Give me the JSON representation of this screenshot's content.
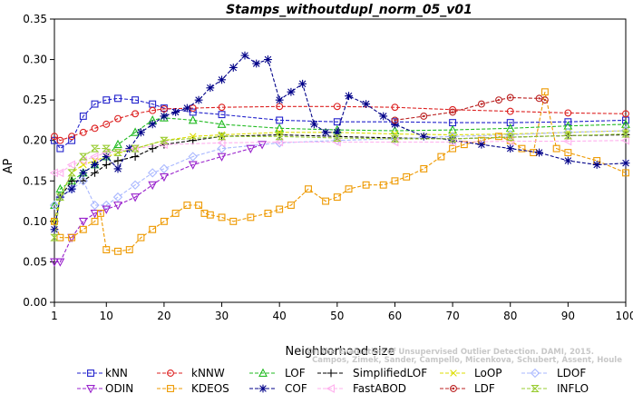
{
  "chart_data": {
    "type": "line",
    "title": "Stamps_withoutdupl_norm_05_v01",
    "xlabel": "Neighborhood size",
    "ylabel": "AP",
    "xlim": [
      1,
      100
    ],
    "ylim": [
      0,
      0.35
    ],
    "x_ticks": [
      1,
      10,
      20,
      30,
      40,
      50,
      60,
      70,
      80,
      90,
      100
    ],
    "y_ticks": [
      "0.00",
      "0.05",
      "0.10",
      "0.15",
      "0.20",
      "0.25",
      "0.30",
      "0.35"
    ],
    "grid": false,
    "legend_position": "bottom",
    "credit_lines": [
      "Campos, Zimek, Sander, Campello, Micenkova, Schubert, Assent, Houle",
      "On the Evaluation of Unsupervised Outlier Detection. DAMI, 2015."
    ],
    "series": [
      {
        "name": "kNN",
        "color": "#2222cc",
        "marker": "square",
        "points": [
          [
            1,
            0.2
          ],
          [
            2,
            0.19
          ],
          [
            4,
            0.2
          ],
          [
            6,
            0.23
          ],
          [
            8,
            0.245
          ],
          [
            10,
            0.25
          ],
          [
            12,
            0.252
          ],
          [
            15,
            0.25
          ],
          [
            18,
            0.245
          ],
          [
            20,
            0.24
          ],
          [
            25,
            0.235
          ],
          [
            30,
            0.232
          ],
          [
            40,
            0.225
          ],
          [
            50,
            0.223
          ],
          [
            60,
            0.223
          ],
          [
            70,
            0.222
          ],
          [
            80,
            0.222
          ],
          [
            90,
            0.223
          ],
          [
            100,
            0.225
          ]
        ]
      },
      {
        "name": "kNNW",
        "color": "#dd2222",
        "marker": "circle",
        "points": [
          [
            1,
            0.205
          ],
          [
            2,
            0.2
          ],
          [
            4,
            0.205
          ],
          [
            6,
            0.21
          ],
          [
            8,
            0.215
          ],
          [
            10,
            0.22
          ],
          [
            12,
            0.227
          ],
          [
            15,
            0.233
          ],
          [
            18,
            0.237
          ],
          [
            20,
            0.239
          ],
          [
            25,
            0.24
          ],
          [
            30,
            0.241
          ],
          [
            40,
            0.242
          ],
          [
            50,
            0.242
          ],
          [
            60,
            0.241
          ],
          [
            70,
            0.238
          ],
          [
            80,
            0.236
          ],
          [
            90,
            0.234
          ],
          [
            100,
            0.233
          ]
        ]
      },
      {
        "name": "LOF",
        "color": "#22bb22",
        "marker": "triangle-up",
        "points": [
          [
            1,
            0.12
          ],
          [
            2,
            0.14
          ],
          [
            4,
            0.15
          ],
          [
            6,
            0.16
          ],
          [
            8,
            0.17
          ],
          [
            10,
            0.18
          ],
          [
            12,
            0.195
          ],
          [
            15,
            0.21
          ],
          [
            18,
            0.225
          ],
          [
            20,
            0.228
          ],
          [
            25,
            0.225
          ],
          [
            30,
            0.22
          ],
          [
            40,
            0.215
          ],
          [
            50,
            0.213
          ],
          [
            60,
            0.212
          ],
          [
            70,
            0.213
          ],
          [
            80,
            0.215
          ],
          [
            90,
            0.218
          ],
          [
            100,
            0.22
          ]
        ]
      },
      {
        "name": "SimplifiedLOF",
        "color": "#000000",
        "marker": "plus",
        "points": [
          [
            1,
            0.1
          ],
          [
            2,
            0.13
          ],
          [
            4,
            0.15
          ],
          [
            6,
            0.15
          ],
          [
            8,
            0.16
          ],
          [
            10,
            0.17
          ],
          [
            12,
            0.175
          ],
          [
            15,
            0.18
          ],
          [
            18,
            0.19
          ],
          [
            20,
            0.195
          ],
          [
            25,
            0.2
          ],
          [
            30,
            0.205
          ],
          [
            40,
            0.207
          ],
          [
            50,
            0.205
          ],
          [
            60,
            0.203
          ],
          [
            70,
            0.202
          ],
          [
            80,
            0.204
          ],
          [
            90,
            0.206
          ],
          [
            100,
            0.207
          ]
        ]
      },
      {
        "name": "LoOP",
        "color": "#dddd00",
        "marker": "x",
        "points": [
          [
            1,
            0.1
          ],
          [
            2,
            0.13
          ],
          [
            4,
            0.16
          ],
          [
            6,
            0.17
          ],
          [
            8,
            0.175
          ],
          [
            10,
            0.18
          ],
          [
            15,
            0.19
          ],
          [
            20,
            0.2
          ],
          [
            25,
            0.205
          ],
          [
            30,
            0.207
          ],
          [
            40,
            0.21
          ],
          [
            50,
            0.21
          ],
          [
            60,
            0.208
          ],
          [
            70,
            0.207
          ],
          [
            80,
            0.208
          ],
          [
            90,
            0.21
          ],
          [
            100,
            0.212
          ]
        ]
      },
      {
        "name": "LDOF",
        "color": "#aab8ff",
        "marker": "diamond",
        "points": [
          [
            1,
            0.12
          ],
          [
            2,
            0.13
          ],
          [
            4,
            0.14
          ],
          [
            6,
            0.15
          ],
          [
            8,
            0.12
          ],
          [
            10,
            0.12
          ],
          [
            12,
            0.13
          ],
          [
            15,
            0.145
          ],
          [
            18,
            0.16
          ],
          [
            20,
            0.165
          ],
          [
            25,
            0.18
          ],
          [
            30,
            0.19
          ],
          [
            40,
            0.197
          ],
          [
            50,
            0.2
          ],
          [
            60,
            0.202
          ],
          [
            70,
            0.205
          ],
          [
            80,
            0.207
          ],
          [
            90,
            0.21
          ],
          [
            100,
            0.212
          ]
        ]
      },
      {
        "name": "ODIN",
        "color": "#9922cc",
        "marker": "triangle-down",
        "points": [
          [
            1,
            0.05
          ],
          [
            2,
            0.05
          ],
          [
            4,
            0.08
          ],
          [
            6,
            0.1
          ],
          [
            8,
            0.11
          ],
          [
            10,
            0.115
          ],
          [
            12,
            0.12
          ],
          [
            15,
            0.13
          ],
          [
            18,
            0.145
          ],
          [
            20,
            0.155
          ],
          [
            25,
            0.17
          ],
          [
            30,
            0.18
          ],
          [
            35,
            0.19
          ],
          [
            37,
            0.195
          ]
        ]
      },
      {
        "name": "KDEOS",
        "color": "#ee9900",
        "marker": "square",
        "points": [
          [
            1,
            0.1
          ],
          [
            2,
            0.08
          ],
          [
            4,
            0.08
          ],
          [
            6,
            0.09
          ],
          [
            8,
            0.1
          ],
          [
            9,
            0.11
          ],
          [
            10,
            0.065
          ],
          [
            12,
            0.063
          ],
          [
            14,
            0.065
          ],
          [
            16,
            0.08
          ],
          [
            18,
            0.09
          ],
          [
            20,
            0.1
          ],
          [
            22,
            0.11
          ],
          [
            24,
            0.12
          ],
          [
            26,
            0.12
          ],
          [
            27,
            0.11
          ],
          [
            28,
            0.108
          ],
          [
            30,
            0.105
          ],
          [
            32,
            0.1
          ],
          [
            35,
            0.105
          ],
          [
            38,
            0.11
          ],
          [
            40,
            0.115
          ],
          [
            42,
            0.12
          ],
          [
            45,
            0.14
          ],
          [
            48,
            0.125
          ],
          [
            50,
            0.13
          ],
          [
            52,
            0.14
          ],
          [
            55,
            0.145
          ],
          [
            58,
            0.145
          ],
          [
            60,
            0.15
          ],
          [
            62,
            0.155
          ],
          [
            65,
            0.165
          ],
          [
            68,
            0.18
          ],
          [
            70,
            0.19
          ],
          [
            72,
            0.195
          ],
          [
            75,
            0.2
          ],
          [
            78,
            0.205
          ],
          [
            80,
            0.2
          ],
          [
            82,
            0.19
          ],
          [
            84,
            0.185
          ],
          [
            86,
            0.26
          ],
          [
            88,
            0.19
          ],
          [
            90,
            0.185
          ],
          [
            95,
            0.175
          ],
          [
            100,
            0.16
          ]
        ]
      },
      {
        "name": "COF",
        "color": "#000088",
        "marker": "star",
        "points": [
          [
            1,
            0.09
          ],
          [
            2,
            0.13
          ],
          [
            4,
            0.14
          ],
          [
            6,
            0.16
          ],
          [
            8,
            0.17
          ],
          [
            10,
            0.18
          ],
          [
            12,
            0.165
          ],
          [
            14,
            0.19
          ],
          [
            16,
            0.21
          ],
          [
            18,
            0.22
          ],
          [
            20,
            0.23
          ],
          [
            22,
            0.235
          ],
          [
            24,
            0.24
          ],
          [
            26,
            0.25
          ],
          [
            28,
            0.265
          ],
          [
            30,
            0.275
          ],
          [
            32,
            0.29
          ],
          [
            34,
            0.305
          ],
          [
            36,
            0.295
          ],
          [
            38,
            0.3
          ],
          [
            40,
            0.25
          ],
          [
            42,
            0.26
          ],
          [
            44,
            0.27
          ],
          [
            46,
            0.22
          ],
          [
            48,
            0.21
          ],
          [
            50,
            0.21
          ],
          [
            52,
            0.255
          ],
          [
            55,
            0.245
          ],
          [
            58,
            0.23
          ],
          [
            60,
            0.22
          ],
          [
            65,
            0.205
          ],
          [
            70,
            0.2
          ],
          [
            75,
            0.195
          ],
          [
            80,
            0.19
          ],
          [
            85,
            0.185
          ],
          [
            90,
            0.175
          ],
          [
            95,
            0.17
          ],
          [
            100,
            0.172
          ]
        ]
      },
      {
        "name": "FastABOD",
        "color": "#ffb0ee",
        "marker": "triangle-left",
        "points": [
          [
            1,
            0.16
          ],
          [
            2,
            0.16
          ],
          [
            4,
            0.17
          ],
          [
            6,
            0.175
          ],
          [
            8,
            0.18
          ],
          [
            10,
            0.185
          ],
          [
            15,
            0.19
          ],
          [
            20,
            0.195
          ],
          [
            30,
            0.197
          ],
          [
            40,
            0.198
          ],
          [
            50,
            0.198
          ],
          [
            60,
            0.198
          ],
          [
            70,
            0.198
          ],
          [
            80,
            0.199
          ],
          [
            90,
            0.199
          ],
          [
            100,
            0.2
          ]
        ]
      },
      {
        "name": "LDF",
        "color": "#bb2222",
        "marker": "circle-dot",
        "points": [
          [
            60,
            0.225
          ],
          [
            65,
            0.23
          ],
          [
            70,
            0.235
          ],
          [
            75,
            0.245
          ],
          [
            78,
            0.25
          ],
          [
            80,
            0.253
          ],
          [
            85,
            0.252
          ],
          [
            86,
            0.25
          ]
        ]
      },
      {
        "name": "INFLO",
        "color": "#99cc33",
        "marker": "hourglass",
        "points": [
          [
            1,
            0.08
          ],
          [
            2,
            0.13
          ],
          [
            4,
            0.16
          ],
          [
            6,
            0.18
          ],
          [
            8,
            0.19
          ],
          [
            10,
            0.19
          ],
          [
            12,
            0.185
          ],
          [
            15,
            0.19
          ],
          [
            20,
            0.2
          ],
          [
            30,
            0.205
          ],
          [
            40,
            0.205
          ],
          [
            50,
            0.203
          ],
          [
            60,
            0.202
          ],
          [
            70,
            0.202
          ],
          [
            80,
            0.204
          ],
          [
            90,
            0.206
          ],
          [
            100,
            0.208
          ]
        ]
      }
    ]
  }
}
